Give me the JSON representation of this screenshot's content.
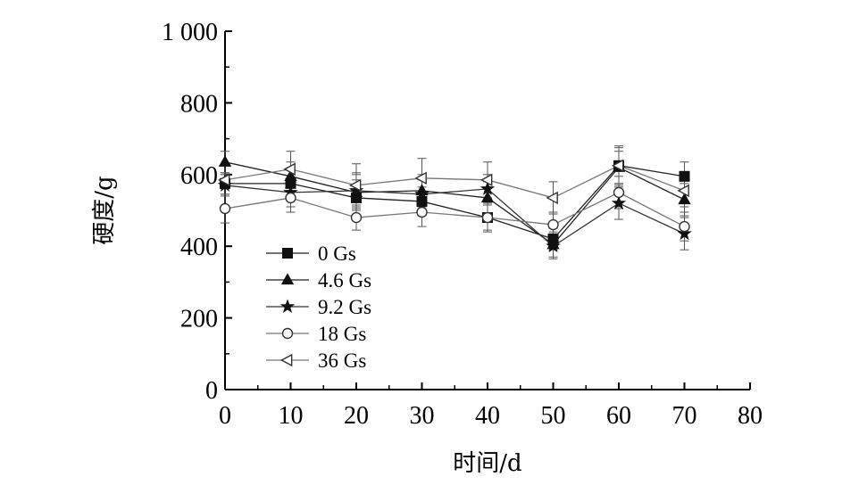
{
  "chart_data": {
    "type": "line",
    "xlabel": "时间/d",
    "ylabel": "硬度/g",
    "xlim": [
      0,
      80
    ],
    "ylim": [
      0,
      1000
    ],
    "xticks": [
      0,
      10,
      20,
      30,
      40,
      50,
      60,
      70,
      80
    ],
    "yticks": [
      0,
      200,
      400,
      600,
      800,
      1000
    ],
    "xtick_labels": [
      "0",
      "10",
      "20",
      "30",
      "40",
      "50",
      "60",
      "70",
      "80"
    ],
    "ytick_labels": [
      "0",
      "200",
      "400",
      "600",
      "800",
      "1 000"
    ],
    "x": [
      0,
      10,
      20,
      30,
      40,
      50,
      60,
      70
    ],
    "grid": false,
    "legend_position": "lower-left",
    "series": [
      {
        "name": "0 Gs",
        "marker": "square-filled",
        "values": [
          575,
          575,
          535,
          525,
          480,
          420,
          625,
          595
        ],
        "error": [
          30,
          40,
          50,
          40,
          40,
          30,
          50,
          40
        ]
      },
      {
        "name": "4.6 Gs",
        "marker": "triangle-filled",
        "values": [
          635,
          595,
          550,
          555,
          535,
          405,
          620,
          530
        ],
        "error": [
          30,
          40,
          50,
          45,
          45,
          35,
          45,
          45
        ]
      },
      {
        "name": "9.2 Gs",
        "marker": "star-filled",
        "values": [
          570,
          550,
          555,
          545,
          560,
          400,
          520,
          435
        ],
        "error": [
          30,
          40,
          50,
          40,
          40,
          35,
          45,
          45
        ]
      },
      {
        "name": "18 Gs",
        "marker": "circle-open",
        "values": [
          505,
          535,
          480,
          495,
          480,
          460,
          550,
          455
        ],
        "error": [
          40,
          40,
          35,
          40,
          35,
          35,
          45,
          40
        ]
      },
      {
        "name": "36 Gs",
        "marker": "triangle-left-open",
        "values": [
          585,
          615,
          570,
          590,
          585,
          535,
          625,
          555
        ],
        "error": [
          40,
          50,
          60,
          55,
          50,
          45,
          55,
          45
        ]
      }
    ]
  }
}
